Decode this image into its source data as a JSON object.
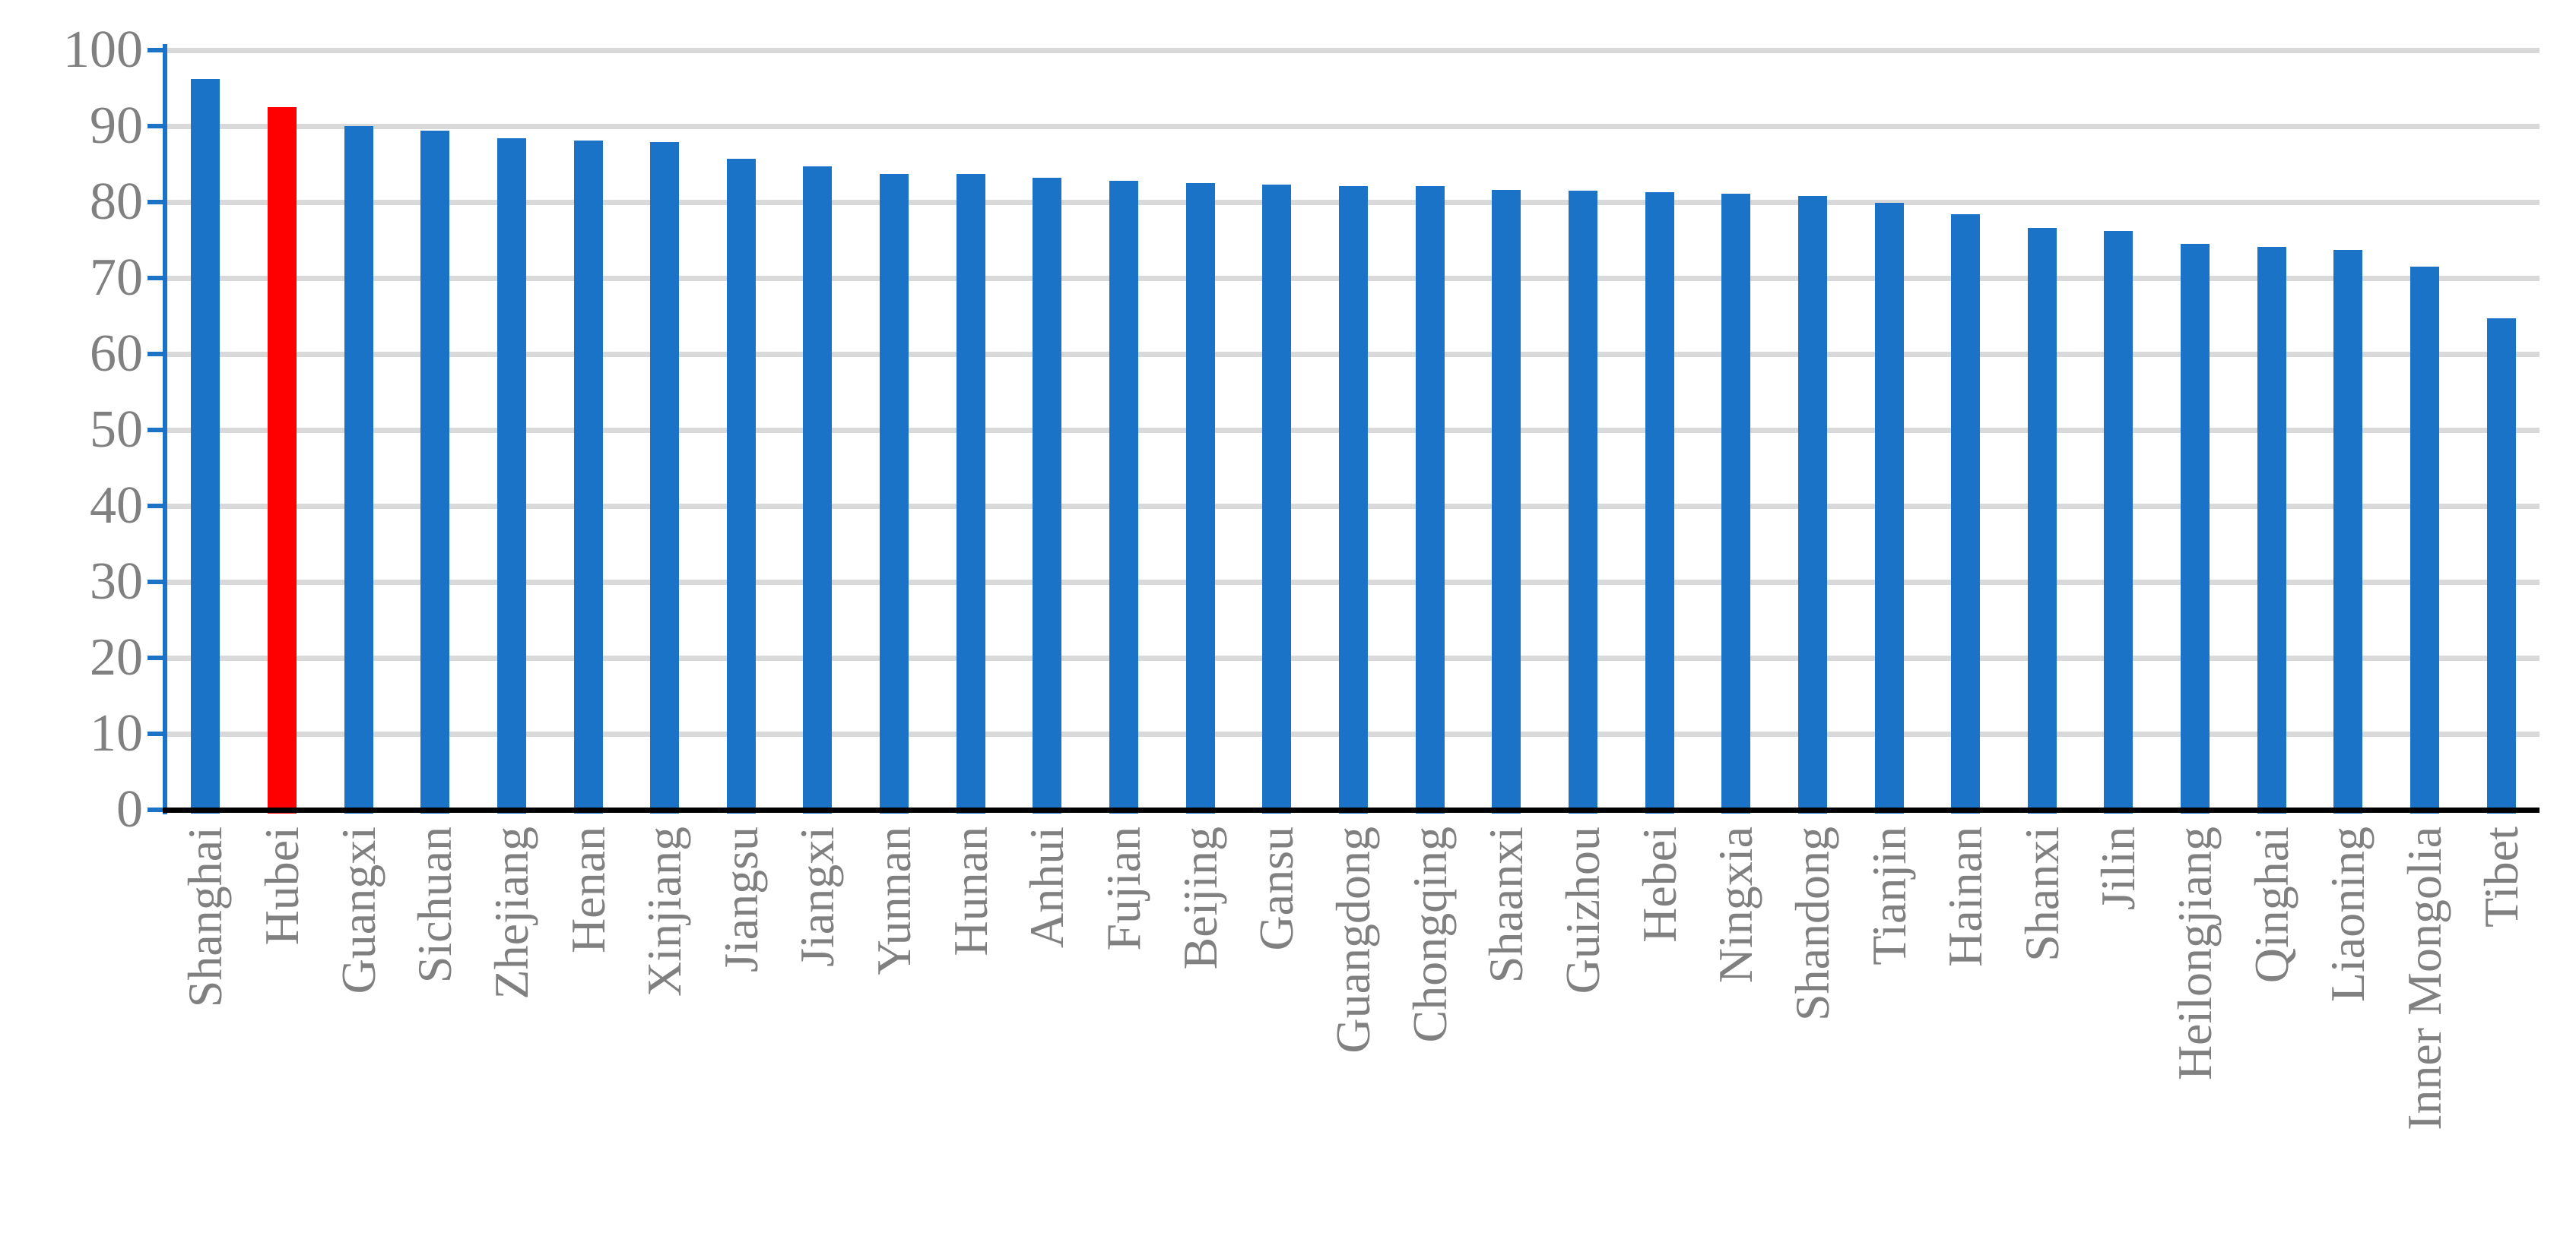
{
  "chart_data": {
    "type": "bar",
    "title": "",
    "xlabel": "",
    "ylabel": "",
    "categories": [
      "Shanghai",
      "Hubei",
      "Guangxi",
      "Sichuan",
      "Zhejiang",
      "Henan",
      "Xinjiang",
      "Jiangsu",
      "Jiangxi",
      "Yunnan",
      "Hunan",
      "Anhui",
      "Fujian",
      "Beijing",
      "Gansu",
      "Guangdong",
      "Chongqing",
      "Shaanxi",
      "Guizhou",
      "Hebei",
      "Ningxia",
      "Shandong",
      "Tianjin",
      "Hainan",
      "Shanxi",
      "Jilin",
      "Heilongjiang",
      "Qinghai",
      "Liaoning",
      "Inner Mongolia",
      "Tibet"
    ],
    "values": [
      96.2,
      92.5,
      90.0,
      89.4,
      88.4,
      88.1,
      87.9,
      85.7,
      84.7,
      83.7,
      83.7,
      83.2,
      82.8,
      82.5,
      82.3,
      82.1,
      82.1,
      81.6,
      81.5,
      81.3,
      81.1,
      80.8,
      79.9,
      78.4,
      76.6,
      76.2,
      74.5,
      74.1,
      73.7,
      71.5,
      64.7
    ],
    "highlighted_category": "Hubei",
    "ylim": [
      0,
      100
    ],
    "yticks": [
      0,
      10,
      20,
      30,
      40,
      50,
      60,
      70,
      80,
      90,
      100
    ],
    "ytick_labels": [
      "0",
      "10",
      "20",
      "30",
      "40",
      "50",
      "60",
      "70",
      "80",
      "90",
      "100"
    ],
    "grid": "horizontal",
    "legend": "none",
    "colors": {
      "bar": "#1B73C7",
      "highlight": "#FF0000",
      "gridline": "#D9D9D9",
      "y_axis_line": "#1B73C7",
      "x_axis_line": "#000000",
      "tick_label": "#808080",
      "category_label": "#808080",
      "background": "#FFFFFF"
    }
  }
}
